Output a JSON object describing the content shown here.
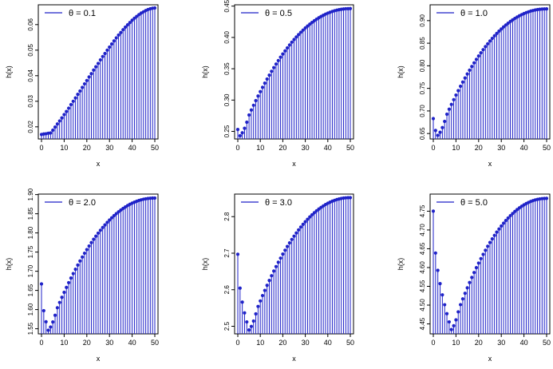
{
  "chart_data": [
    {
      "type": "stem",
      "legend": "θ = 0.1",
      "xlabel": "x",
      "ylabel": "h(x)",
      "xlim": [
        0,
        50
      ],
      "ylim": [
        0.0165,
        0.0665
      ],
      "xticks": [
        0,
        10,
        20,
        30,
        40,
        50
      ],
      "yticks": [
        0.02,
        0.03,
        0.04,
        0.05,
        0.06
      ],
      "ytick_labels": [
        "0.02",
        "0.03",
        "0.04",
        "0.05",
        "0.06"
      ],
      "shape": {
        "kind": "monotone",
        "y0": 0.017,
        "yend": 0.0665,
        "flat": 4
      }
    },
    {
      "type": "stem",
      "legend": "θ = 0.5",
      "xlabel": "x",
      "ylabel": "h(x)",
      "xlim": [
        0,
        50
      ],
      "ylim": [
        0.243,
        0.447
      ],
      "xticks": [
        0,
        10,
        20,
        30,
        40,
        50
      ],
      "yticks": [
        0.25,
        0.3,
        0.35,
        0.4,
        0.45
      ],
      "ytick_labels": [
        "0.25",
        "0.30",
        "0.35",
        "0.40",
        "0.45"
      ],
      "shape": {
        "kind": "dip",
        "y0": 0.253,
        "ymin": 0.243,
        "xmin": 1,
        "yend": 0.446
      }
    },
    {
      "type": "stem",
      "legend": "θ = 1.0",
      "xlabel": "x",
      "ylabel": "h(x)",
      "xlim": [
        0,
        50
      ],
      "ylim": [
        0.645,
        0.928
      ],
      "xticks": [
        0,
        10,
        20,
        30,
        40,
        50
      ],
      "yticks": [
        0.65,
        0.7,
        0.75,
        0.8,
        0.85,
        0.9
      ],
      "ytick_labels": [
        "0.65",
        "0.70",
        "0.75",
        "0.80",
        "0.85",
        "0.90"
      ],
      "shape": {
        "kind": "dip",
        "y0": 0.683,
        "ymin": 0.646,
        "xmin": 2,
        "yend": 0.926
      }
    },
    {
      "type": "stem",
      "legend": "θ = 2.0",
      "xlabel": "x",
      "ylabel": "h(x)",
      "xlim": [
        0,
        50
      ],
      "ylim": [
        1.545,
        1.893
      ],
      "xticks": [
        0,
        10,
        20,
        30,
        40,
        50
      ],
      "yticks": [
        1.55,
        1.6,
        1.65,
        1.7,
        1.75,
        1.8,
        1.85,
        1.9
      ],
      "ytick_labels": [
        "1.55",
        "1.60",
        "1.65",
        "1.70",
        "1.75",
        "1.80",
        "1.85",
        "1.90"
      ],
      "shape": {
        "kind": "dip",
        "y0": 1.667,
        "ymin": 1.546,
        "xmin": 3,
        "yend": 1.891
      }
    },
    {
      "type": "stem",
      "legend": "θ = 3.0",
      "xlabel": "x",
      "ylabel": "h(x)",
      "xlim": [
        0,
        50
      ],
      "ylim": [
        2.488,
        2.853
      ],
      "xticks": [
        0,
        10,
        20,
        30,
        40,
        50
      ],
      "yticks": [
        2.5,
        2.6,
        2.7,
        2.8
      ],
      "ytick_labels": [
        "2.5",
        "2.6",
        "2.7",
        "2.8"
      ],
      "shape": {
        "kind": "dip",
        "y0": 2.697,
        "ymin": 2.49,
        "xmin": 5,
        "yend": 2.852
      }
    },
    {
      "type": "stem",
      "legend": "θ = 5.0",
      "xlabel": "x",
      "ylabel": "h(x)",
      "xlim": [
        0,
        50
      ],
      "ylim": [
        4.432,
        4.787
      ],
      "xticks": [
        0,
        10,
        20,
        30,
        40,
        50
      ],
      "yticks": [
        4.45,
        4.5,
        4.55,
        4.6,
        4.65,
        4.7,
        4.75
      ],
      "ytick_labels": [
        "4.45",
        "4.50",
        "4.55",
        "4.60",
        "4.65",
        "4.70",
        "4.75"
      ],
      "shape": {
        "kind": "dip",
        "y0": 4.75,
        "ymin": 4.435,
        "xmin": 8,
        "yend": 4.784
      }
    }
  ],
  "colors": {
    "series": "#1f22c8",
    "axis": "#000000"
  }
}
